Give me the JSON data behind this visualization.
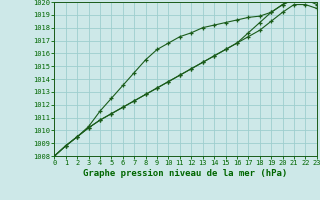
{
  "title": "Graphe pression niveau de la mer (hPa)",
  "x_min": 0,
  "x_max": 23,
  "y_min": 1008,
  "y_max": 1020,
  "background_color": "#cde8e8",
  "grid_color": "#9ecece",
  "line_color": "#1a5c1a",
  "marker_color": "#1a5c1a",
  "xlabel_color": "#006600",
  "tick_label_color": "#006600",
  "series1": [
    1008.0,
    1008.8,
    1009.5,
    1010.2,
    1010.8,
    1011.3,
    1011.8,
    1012.3,
    1012.8,
    1013.3,
    1013.8,
    1014.3,
    1014.8,
    1015.3,
    1015.8,
    1016.3,
    1016.8,
    1017.3,
    1017.8,
    1018.5,
    1019.2,
    1019.8,
    1019.8,
    1019.5
  ],
  "series2": [
    1008.0,
    1008.8,
    1009.5,
    1010.3,
    1011.5,
    1012.5,
    1013.5,
    1014.5,
    1015.5,
    1016.3,
    1016.8,
    1017.3,
    1017.6,
    1018.0,
    1018.2,
    1018.4,
    1018.6,
    1018.8,
    1018.9,
    1019.2,
    1019.8,
    1020.2,
    1020.3,
    1020.0
  ],
  "series3": [
    1008.0,
    1008.8,
    1009.5,
    1010.2,
    1010.8,
    1011.3,
    1011.8,
    1012.3,
    1012.8,
    1013.3,
    1013.8,
    1014.3,
    1014.8,
    1015.3,
    1015.8,
    1016.3,
    1016.8,
    1017.6,
    1018.4,
    1019.2,
    1019.8,
    1020.2,
    1020.2,
    1019.8
  ],
  "x_ticks": [
    0,
    1,
    2,
    3,
    4,
    5,
    6,
    7,
    8,
    9,
    10,
    11,
    12,
    13,
    14,
    15,
    16,
    17,
    18,
    19,
    20,
    21,
    22,
    23
  ],
  "y_ticks": [
    1008,
    1009,
    1010,
    1011,
    1012,
    1013,
    1014,
    1015,
    1016,
    1017,
    1018,
    1019,
    1020
  ],
  "title_fontsize": 6.5,
  "tick_fontsize": 5.0
}
